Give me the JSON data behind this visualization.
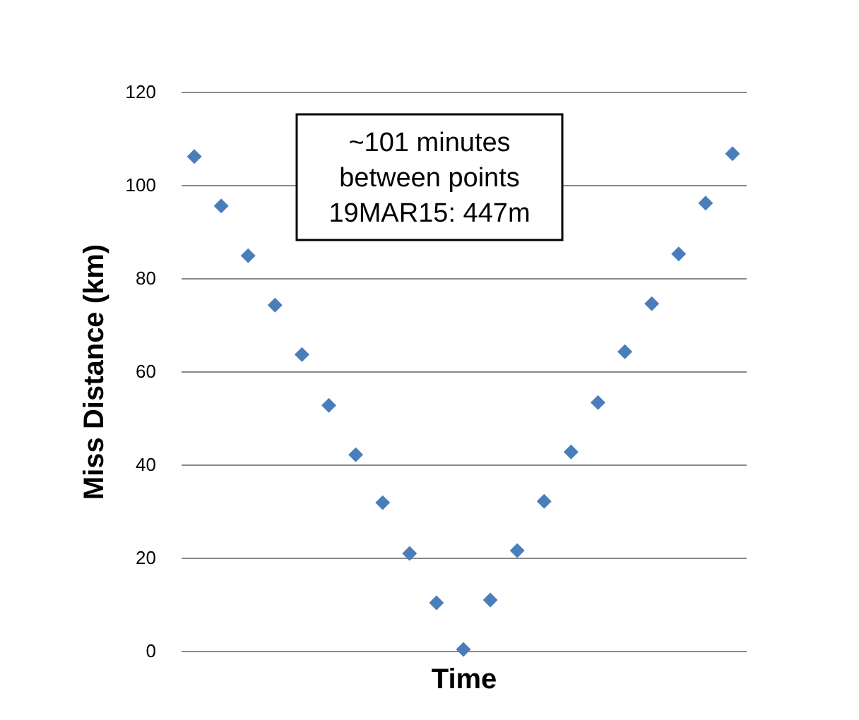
{
  "chart_data": {
    "type": "scatter",
    "xlabel": "Time",
    "ylabel": "Miss Distance (km)",
    "categories": [
      null,
      null,
      null,
      null,
      null,
      null,
      null,
      null,
      null,
      null,
      null,
      null,
      null,
      null,
      null,
      null,
      null,
      null,
      null,
      null,
      null
    ],
    "values": [
      106.1,
      95.5,
      84.8,
      74.2,
      63.6,
      52.7,
      42.1,
      31.8,
      20.9,
      10.3,
      0.3,
      10.9,
      21.5,
      32.1,
      42.7,
      53.3,
      64.2,
      74.5,
      85.2,
      96.1,
      106.7
    ],
    "color": "#4a7ebb",
    "marker": "diamond",
    "ylim": [
      0,
      120
    ],
    "yticks": [
      0,
      20,
      40,
      60,
      80,
      100,
      120
    ],
    "grid": "y",
    "annotations": [
      "~101 minutes\nbetween points\n19MAR15: 447m"
    ]
  }
}
